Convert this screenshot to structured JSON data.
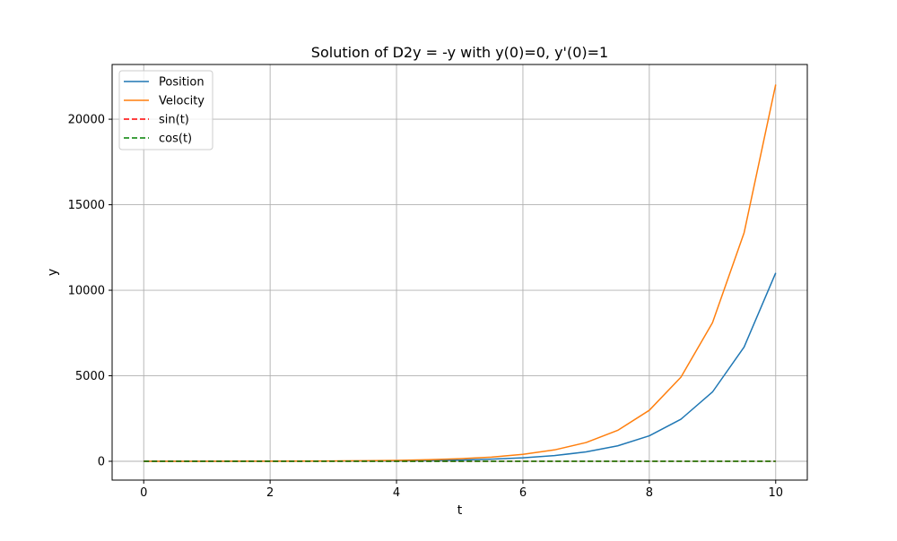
{
  "chart_data": {
    "type": "line",
    "title": "Solution of D2y = -y with y(0)=0, y'(0)=1",
    "xlabel": "t",
    "ylabel": "y",
    "xlim": [
      -0.5,
      10.5
    ],
    "ylim": [
      -1100,
      23200
    ],
    "xticks": [
      0,
      2,
      4,
      6,
      8,
      10
    ],
    "xtick_labels": [
      "0",
      "2",
      "4",
      "6",
      "8",
      "10"
    ],
    "yticks": [
      0,
      5000,
      10000,
      15000,
      20000
    ],
    "ytick_labels": [
      "0",
      "5000",
      "10000",
      "15000",
      "20000"
    ],
    "grid": true,
    "legend_position": "top-left",
    "x": [
      0,
      0.5,
      1,
      1.5,
      2,
      2.5,
      3,
      3.5,
      4,
      4.5,
      5,
      5.5,
      6,
      6.5,
      7,
      7.5,
      8,
      8.5,
      9,
      9.5,
      10
    ],
    "series": [
      {
        "name": "Position",
        "color": "#1f77b4",
        "dash": "solid",
        "values": [
          0,
          0.5,
          1.2,
          2.1,
          3.6,
          6.0,
          10.0,
          16.6,
          27.3,
          45.0,
          74.2,
          122.3,
          201.7,
          332.6,
          548.3,
          904.0,
          1490.5,
          2457.6,
          4052.0,
          6680.9,
          11014.9
        ]
      },
      {
        "name": "Velocity",
        "color": "#ff7f0e",
        "dash": "solid",
        "values": [
          1,
          1.6,
          2.7,
          4.5,
          7.4,
          12.2,
          20.1,
          33.1,
          54.6,
          90.0,
          148.4,
          244.7,
          403.4,
          665.1,
          1096.6,
          1808.0,
          2981.0,
          4914.8,
          8103.1,
          13359.7,
          22026.5
        ]
      },
      {
        "name": "sin(t)",
        "color": "#ff0000",
        "dash": "dashed",
        "values": [
          0,
          0.48,
          0.84,
          1.0,
          0.91,
          0.6,
          0.14,
          -0.35,
          -0.76,
          -0.98,
          -0.96,
          -0.71,
          -0.28,
          0.22,
          0.66,
          0.94,
          0.99,
          0.8,
          0.41,
          -0.08,
          -0.54
        ]
      },
      {
        "name": "cos(t)",
        "color": "#008000",
        "dash": "dashed",
        "values": [
          1,
          0.88,
          0.54,
          0.07,
          -0.42,
          -0.8,
          -0.99,
          -0.94,
          -0.65,
          -0.21,
          0.28,
          0.71,
          0.96,
          0.98,
          0.75,
          0.35,
          -0.15,
          -0.6,
          -0.91,
          -1.0,
          -0.84
        ]
      }
    ]
  }
}
